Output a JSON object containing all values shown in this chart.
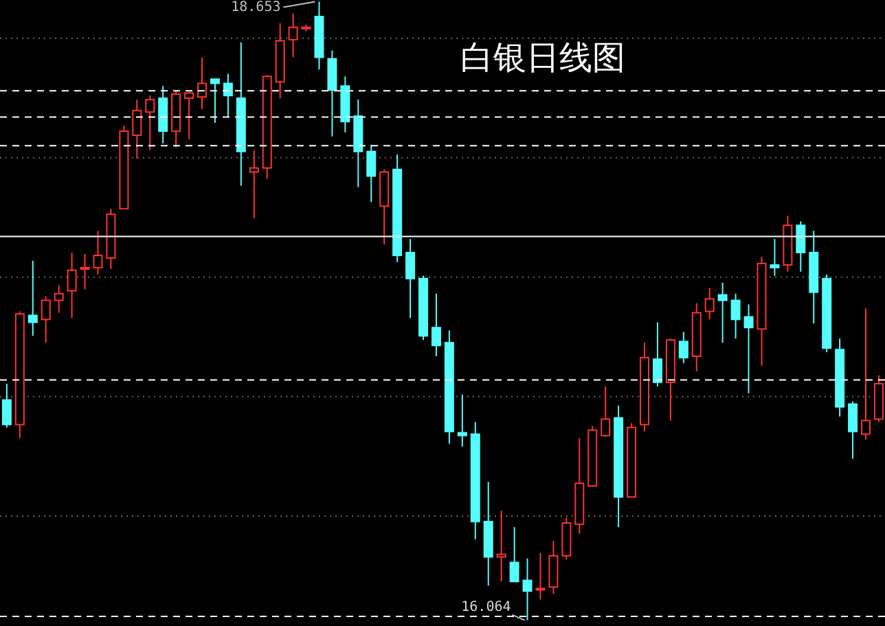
{
  "chart_data": {
    "type": "candlestick",
    "title": "白银日线图",
    "categories": [
      null,
      null,
      null,
      null,
      null,
      null,
      null,
      null,
      null,
      null,
      null,
      null,
      null,
      null,
      null,
      null,
      null,
      null,
      null,
      null,
      null,
      null,
      null,
      null,
      null,
      null,
      null,
      null,
      null,
      null,
      null,
      null,
      null,
      null,
      null,
      null,
      null,
      null,
      null,
      null,
      null,
      null,
      null,
      null,
      null,
      null,
      null,
      null,
      null,
      null,
      null,
      null,
      null,
      null,
      null,
      null,
      null,
      null,
      null,
      null,
      null,
      null,
      null,
      null,
      null,
      null,
      null,
      null
    ],
    "ohlc": [
      [
        16.986,
        17.054,
        16.871,
        16.883
      ],
      [
        16.883,
        17.357,
        16.826,
        17.346
      ],
      [
        17.34,
        17.569,
        17.254,
        17.311
      ],
      [
        17.323,
        17.42,
        17.226,
        17.403
      ],
      [
        17.403,
        17.466,
        17.351,
        17.431
      ],
      [
        17.443,
        17.603,
        17.329,
        17.529
      ],
      [
        17.534,
        17.597,
        17.449,
        17.54
      ],
      [
        17.54,
        17.694,
        17.511,
        17.591
      ],
      [
        17.58,
        17.786,
        17.534,
        17.763
      ],
      [
        17.786,
        18.134,
        17.786,
        18.111
      ],
      [
        18.094,
        18.243,
        17.997,
        18.197
      ],
      [
        18.191,
        18.26,
        18.031,
        18.243
      ],
      [
        18.249,
        18.3,
        18.06,
        18.111
      ],
      [
        18.111,
        18.277,
        18.043,
        18.266
      ],
      [
        18.249,
        18.277,
        18.077,
        18.271
      ],
      [
        18.254,
        18.42,
        18.203,
        18.311
      ],
      [
        18.329,
        18.329,
        18.146,
        18.311
      ],
      [
        18.311,
        18.351,
        18.169,
        18.26
      ],
      [
        18.249,
        18.483,
        17.883,
        18.026
      ],
      [
        17.94,
        18.031,
        17.746,
        17.957
      ],
      [
        17.957,
        18.346,
        17.911,
        18.34
      ],
      [
        18.317,
        18.563,
        18.249,
        18.489
      ],
      [
        18.494,
        18.603,
        18.42,
        18.546
      ],
      [
        18.54,
        18.557,
        18.529,
        18.546
      ],
      [
        18.591,
        18.653,
        18.369,
        18.42
      ],
      [
        18.414,
        18.449,
        18.089,
        18.283
      ],
      [
        18.3,
        18.34,
        18.106,
        18.151
      ],
      [
        18.174,
        18.243,
        17.877,
        18.026
      ],
      [
        18.026,
        18.054,
        17.814,
        17.923
      ],
      [
        17.797,
        17.951,
        17.637,
        17.94
      ],
      [
        17.951,
        18.014,
        17.563,
        17.591
      ],
      [
        17.603,
        17.66,
        17.329,
        17.494
      ],
      [
        17.494,
        17.506,
        17.237,
        17.254
      ],
      [
        17.289,
        17.431,
        17.169,
        17.214
      ],
      [
        17.226,
        17.277,
        16.803,
        16.854
      ],
      [
        16.849,
        17.009,
        16.791,
        16.837
      ],
      [
        16.843,
        16.894,
        16.403,
        16.477
      ],
      [
        16.477,
        16.643,
        16.209,
        16.329
      ],
      [
        16.329,
        16.523,
        16.226,
        16.34
      ],
      [
        16.306,
        16.454,
        16.226,
        16.226
      ],
      [
        16.231,
        16.323,
        16.064,
        16.186
      ],
      [
        16.191,
        16.346,
        16.151,
        16.197
      ],
      [
        16.203,
        16.397,
        16.174,
        16.334
      ],
      [
        16.334,
        16.494,
        16.317,
        16.471
      ],
      [
        16.466,
        16.826,
        16.426,
        16.637
      ],
      [
        16.626,
        16.877,
        16.626,
        16.86
      ],
      [
        16.837,
        17.043,
        16.831,
        16.906
      ],
      [
        16.911,
        16.963,
        16.454,
        16.58
      ],
      [
        16.58,
        16.889,
        16.58,
        16.871
      ],
      [
        16.883,
        17.226,
        16.854,
        17.163
      ],
      [
        17.157,
        17.311,
        17.043,
        17.06
      ],
      [
        17.06,
        17.243,
        16.9,
        17.237
      ],
      [
        17.231,
        17.271,
        17.14,
        17.163
      ],
      [
        17.169,
        17.391,
        17.106,
        17.351
      ],
      [
        17.357,
        17.454,
        17.323,
        17.409
      ],
      [
        17.426,
        17.477,
        17.226,
        17.403
      ],
      [
        17.403,
        17.431,
        17.243,
        17.323
      ],
      [
        17.334,
        17.386,
        17.014,
        17.289
      ],
      [
        17.283,
        17.586,
        17.129,
        17.557
      ],
      [
        17.551,
        17.66,
        17.506,
        17.54
      ],
      [
        17.551,
        17.757,
        17.523,
        17.717
      ],
      [
        17.717,
        17.734,
        17.523,
        17.603
      ],
      [
        17.603,
        17.694,
        17.306,
        17.437
      ],
      [
        17.494,
        17.511,
        17.186,
        17.203
      ],
      [
        17.197,
        17.243,
        16.917,
        16.957
      ],
      [
        16.969,
        16.98,
        16.74,
        16.854
      ],
      [
        16.843,
        17.369,
        16.82,
        16.9
      ],
      [
        16.906,
        17.089,
        16.894,
        17.054
      ]
    ],
    "colors": [
      "#54fcfc",
      "#ff3232",
      "#54fcfc",
      "#ff3232",
      "#ff3232",
      "#ff3232",
      "#ff3232",
      "#ff3232",
      "#ff3232",
      "#ff3232",
      "#ff3232",
      "#ff3232",
      "#54fcfc",
      "#ff3232",
      "#ff3232",
      "#ff3232",
      "#54fcfc",
      "#54fcfc",
      "#54fcfc",
      "#ff3232",
      "#ff3232",
      "#ff3232",
      "#ff3232",
      "#ff3232",
      "#54fcfc",
      "#54fcfc",
      "#54fcfc",
      "#54fcfc",
      "#54fcfc",
      "#ff3232",
      "#54fcfc",
      "#54fcfc",
      "#54fcfc",
      "#54fcfc",
      "#54fcfc",
      "#54fcfc",
      "#54fcfc",
      "#54fcfc",
      "#ff3232",
      "#54fcfc",
      "#54fcfc",
      "#ff3232",
      "#ff3232",
      "#ff3232",
      "#ff3232",
      "#ff3232",
      "#ff3232",
      "#54fcfc",
      "#ff3232",
      "#ff3232",
      "#54fcfc",
      "#ff3232",
      "#54fcfc",
      "#ff3232",
      "#ff3232",
      "#54fcfc",
      "#54fcfc",
      "#54fcfc",
      "#ff3232",
      "#54fcfc",
      "#ff3232",
      "#54fcfc",
      "#54fcfc",
      "#54fcfc",
      "#54fcfc",
      "#54fcfc",
      "#ff3232",
      "#ff3232"
    ],
    "ylim": [
      16.04,
      18.66
    ],
    "yticks": [
      {
        "value": 16.5,
        "label": null
      },
      {
        "value": 17,
        "label": null
      },
      {
        "value": 17.5,
        "label": null
      },
      {
        "value": 18,
        "label": null
      },
      {
        "value": 18.5,
        "label": null
      }
    ],
    "tick_labels": false,
    "grid": "y",
    "ref_lines": [
      {
        "axis": "y",
        "value": 18.28,
        "label": null,
        "color": "#ffffff",
        "line_style": "dashed"
      },
      {
        "axis": "y",
        "value": 18.17,
        "label": null,
        "color": "#ffffff",
        "line_style": "dashed"
      },
      {
        "axis": "y",
        "value": 18.05,
        "label": null,
        "color": "#ffffff",
        "line_style": "dashed"
      },
      {
        "axis": "y",
        "value": 17.67,
        "label": null,
        "color": "#ffffff",
        "line_style": "solid"
      },
      {
        "axis": "y",
        "value": 17.07,
        "label": null,
        "color": "#ffffff",
        "line_style": "dashed"
      },
      {
        "axis": "y",
        "value": 16.08,
        "label": null,
        "color": "#ffffff",
        "line_style": "dashed"
      }
    ],
    "annotations": [
      "18.653",
      "16.064"
    ]
  }
}
